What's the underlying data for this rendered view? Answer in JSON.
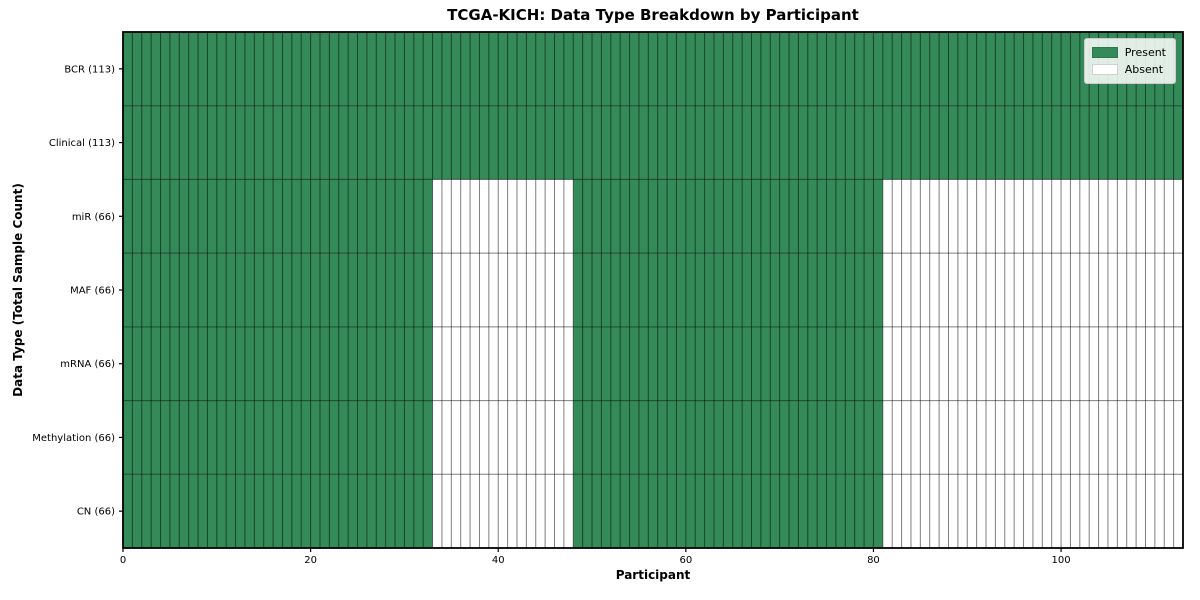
{
  "chart_data": {
    "type": "heatmap",
    "title": "TCGA-KICH: Data Type Breakdown by Participant",
    "xlabel": "Participant",
    "ylabel": "Data Type (Total Sample Count)",
    "n_participants": 113,
    "xlim": [
      0,
      113
    ],
    "x_ticks": [
      0,
      20,
      40,
      60,
      80,
      100
    ],
    "grid": true,
    "legend_position": "upper right",
    "legend": [
      {
        "label": "Present",
        "state": "present"
      },
      {
        "label": "Absent",
        "state": "absent"
      }
    ],
    "colors": {
      "present": "#348a58",
      "absent": "#ffffff",
      "cell_edge": "rgba(0,0,0,0.5)",
      "frame": "#000000",
      "tick": "#000000",
      "legend_bg": "rgba(255,255,255,0.85)",
      "legend_border": "#cccccc"
    },
    "rows": [
      {
        "label": "BCR (113)",
        "total_samples": 113,
        "present_runs": [
          [
            0,
            113
          ]
        ]
      },
      {
        "label": "Clinical (113)",
        "total_samples": 113,
        "present_runs": [
          [
            0,
            113
          ]
        ]
      },
      {
        "label": "miR (66)",
        "total_samples": 66,
        "present_runs": [
          [
            0,
            33
          ],
          [
            48,
            81
          ]
        ]
      },
      {
        "label": "MAF (66)",
        "total_samples": 66,
        "present_runs": [
          [
            0,
            33
          ],
          [
            48,
            81
          ]
        ]
      },
      {
        "label": "mRNA (66)",
        "total_samples": 66,
        "present_runs": [
          [
            0,
            33
          ],
          [
            48,
            81
          ]
        ]
      },
      {
        "label": "Methylation (66)",
        "total_samples": 66,
        "present_runs": [
          [
            0,
            33
          ],
          [
            48,
            81
          ]
        ]
      },
      {
        "label": "CN (66)",
        "total_samples": 66,
        "present_runs": [
          [
            0,
            33
          ],
          [
            48,
            81
          ]
        ]
      }
    ]
  }
}
